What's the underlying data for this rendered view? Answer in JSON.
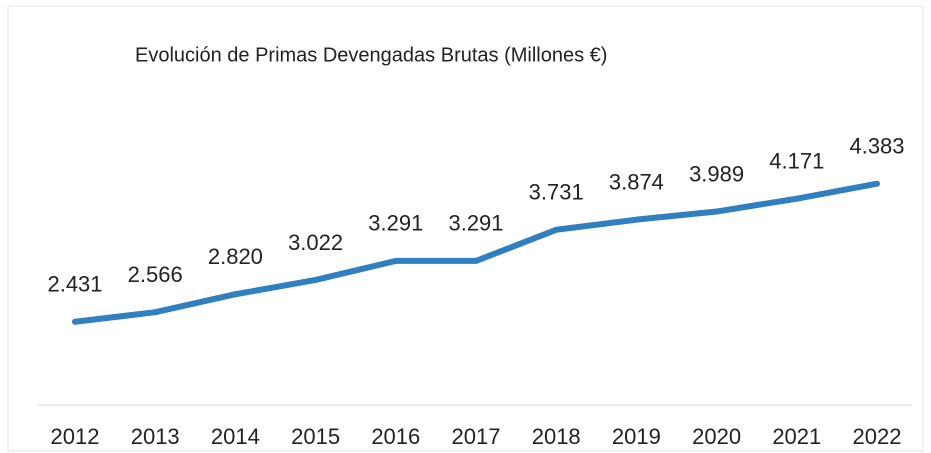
{
  "chart_data": {
    "type": "line",
    "title": "Evolución de Primas Devengadas Brutas (Millones €)",
    "categories": [
      "2012",
      "2013",
      "2014",
      "2015",
      "2016",
      "2017",
      "2018",
      "2019",
      "2020",
      "2021",
      "2022"
    ],
    "series": [
      {
        "name": "Primas Devengadas Brutas",
        "color": "#2f7fc1",
        "values": [
          2431,
          2566,
          2820,
          3022,
          3291,
          3291,
          3731,
          3874,
          3989,
          4171,
          4383
        ],
        "value_labels": [
          "2.431",
          "2.566",
          "2.820",
          "3.022",
          "3.291",
          "3.291",
          "3.731",
          "3.874",
          "3.989",
          "4.171",
          "4.383"
        ]
      }
    ],
    "ylim": [
      1000,
      5000
    ]
  }
}
